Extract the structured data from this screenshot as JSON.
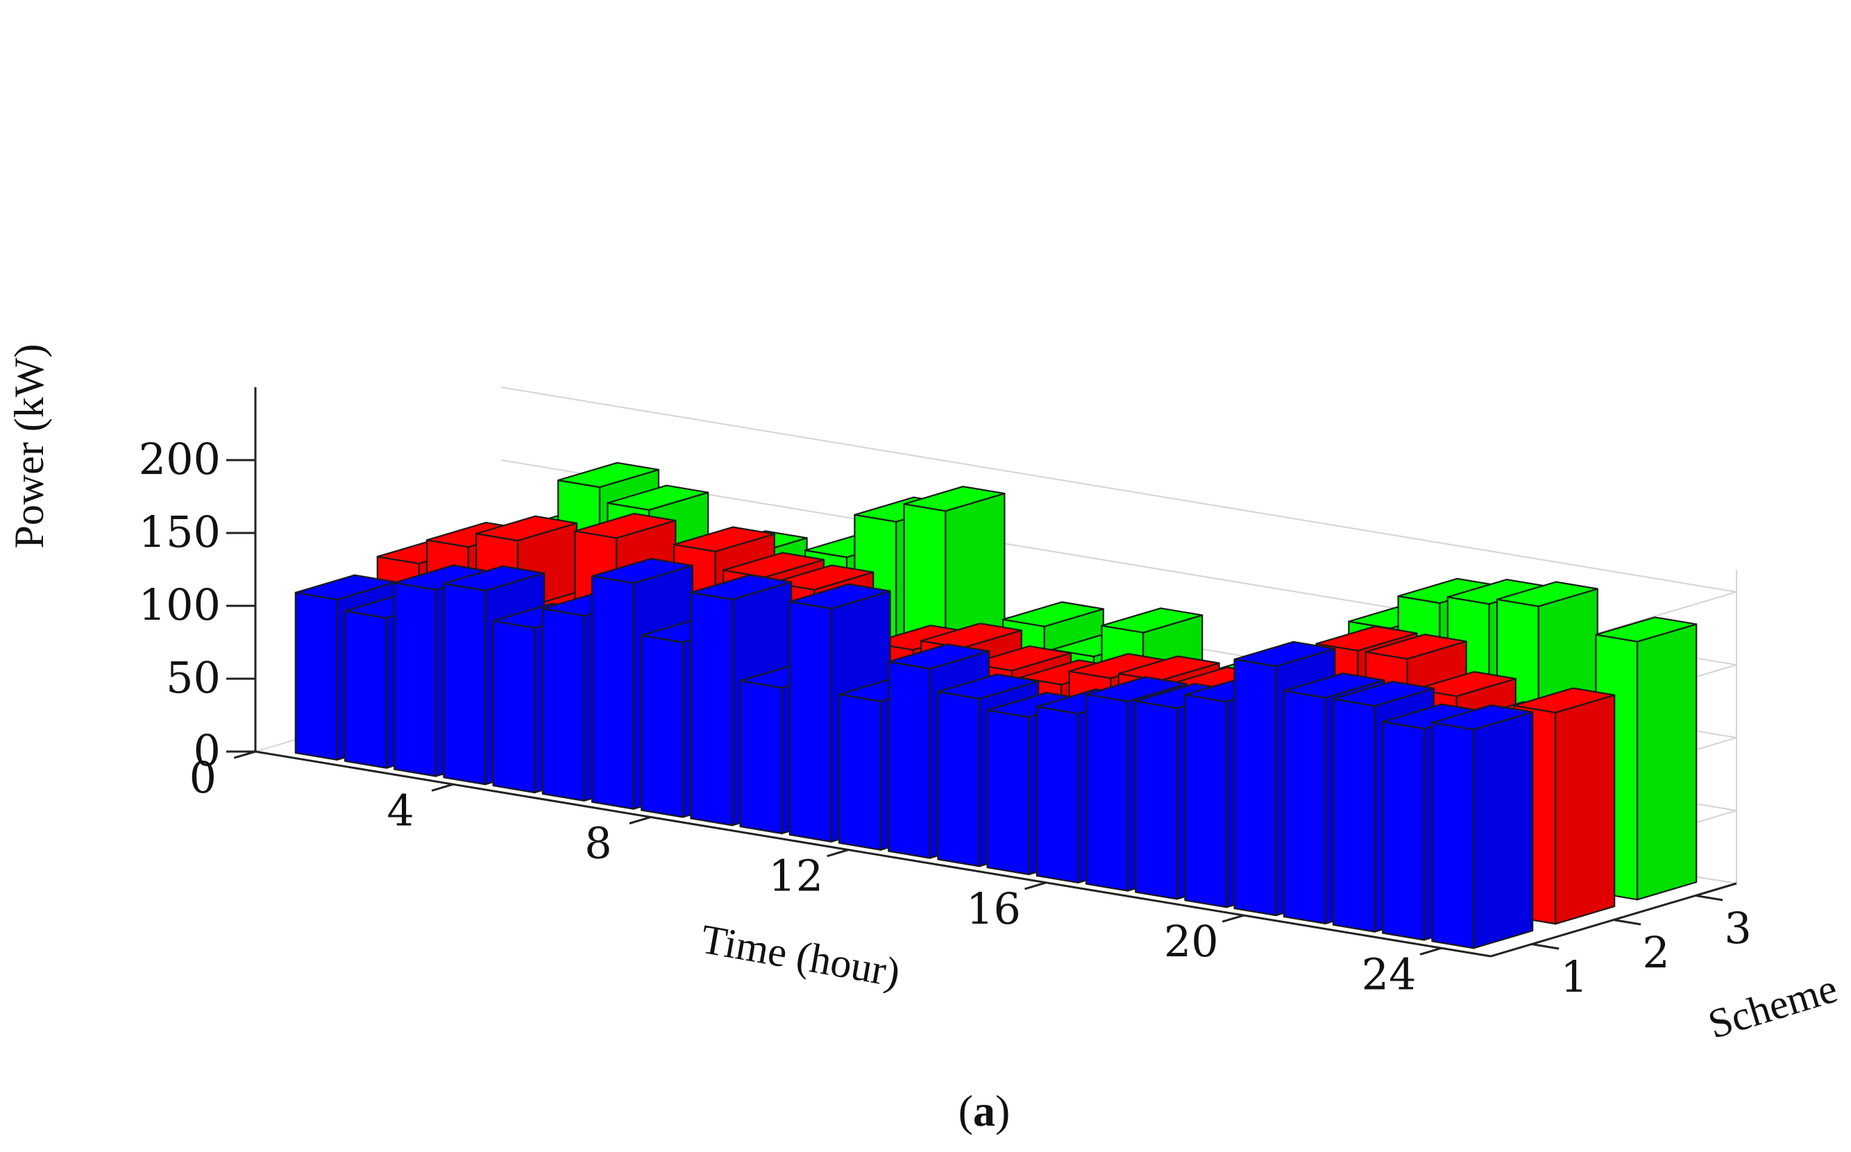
{
  "chart_data": {
    "type": "bar3d",
    "title": "",
    "caption_open": "(",
    "caption_letter": "a",
    "caption_close": ")",
    "xlabel": "Time  (hour)",
    "ylabel": "Scheme",
    "zlabel": "Power (kW)",
    "x_ticks": [
      0,
      4,
      8,
      12,
      16,
      20,
      24
    ],
    "y_ticks": [
      1,
      2,
      3
    ],
    "z_ticks": [
      0,
      50,
      100,
      150,
      200
    ],
    "xlim": [
      0,
      25
    ],
    "ylim": [
      0.5,
      3.5
    ],
    "zlim": [
      0,
      250
    ],
    "x": [
      1,
      2,
      3,
      4,
      5,
      6,
      7,
      8,
      9,
      10,
      11,
      12,
      13,
      14,
      15,
      16,
      17,
      18,
      19,
      20,
      21,
      22,
      23,
      24
    ],
    "series": [
      {
        "name": "Scheme 1",
        "color": "#0000ff",
        "values": [
          110,
          103,
          128,
          133,
          113,
          127,
          155,
          120,
          155,
          100,
          160,
          102,
          130,
          115,
          108,
          116,
          130,
          131,
          141,
          171,
          155,
          155,
          145,
          150
        ]
      },
      {
        "name": "Scheme 2",
        "color": "#ff0000",
        "values": [
          118,
          135,
          145,
          100,
          158,
          130,
          160,
          148,
          145,
          95,
          115,
          122,
          112,
          108,
          118,
          122,
          120,
          125,
          140,
          165,
          165,
          145,
          130,
          145
        ]
      },
      {
        "name": "Scheme 3",
        "color": "#00ff00",
        "values": [
          108,
          125,
          165,
          155,
          110,
          135,
          120,
          145,
          175,
          188,
          97,
          120,
          105,
          127,
          88,
          105,
          100,
          115,
          158,
          181,
          186,
          190,
          92,
          177
        ]
      }
    ]
  }
}
